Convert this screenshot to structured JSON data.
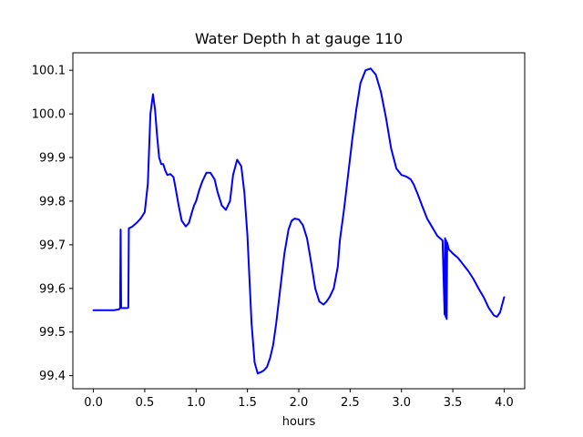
{
  "chart_data": {
    "type": "line",
    "title": "Water Depth h at gauge 110",
    "xlabel": "hours",
    "ylabel": "",
    "xlim": [
      -0.2,
      4.2
    ],
    "ylim": [
      99.37,
      100.14
    ],
    "xticks": [
      {
        "value": 0.0,
        "label": "0.0"
      },
      {
        "value": 0.5,
        "label": "0.5"
      },
      {
        "value": 1.0,
        "label": "1.0"
      },
      {
        "value": 1.5,
        "label": "1.5"
      },
      {
        "value": 2.0,
        "label": "2.0"
      },
      {
        "value": 2.5,
        "label": "2.5"
      },
      {
        "value": 3.0,
        "label": "3.0"
      },
      {
        "value": 3.5,
        "label": "3.5"
      },
      {
        "value": 4.0,
        "label": "4.0"
      }
    ],
    "yticks": [
      {
        "value": 99.4,
        "label": "99.4"
      },
      {
        "value": 99.5,
        "label": "99.5"
      },
      {
        "value": 99.6,
        "label": "99.6"
      },
      {
        "value": 99.7,
        "label": "99.7"
      },
      {
        "value": 99.8,
        "label": "99.8"
      },
      {
        "value": 99.9,
        "label": "99.9"
      },
      {
        "value": 100.0,
        "label": "100.0"
      },
      {
        "value": 100.1,
        "label": "100.1"
      }
    ],
    "grid": false,
    "series": [
      {
        "color": "#0000ff",
        "x": [
          0.0,
          0.1,
          0.2,
          0.25,
          0.26,
          0.265,
          0.27,
          0.28,
          0.3,
          0.33,
          0.34,
          0.345,
          0.35,
          0.38,
          0.42,
          0.46,
          0.5,
          0.53,
          0.555,
          0.58,
          0.6,
          0.62,
          0.64,
          0.66,
          0.68,
          0.7,
          0.72,
          0.75,
          0.78,
          0.8,
          0.83,
          0.86,
          0.9,
          0.93,
          0.96,
          0.98,
          1.0,
          1.03,
          1.06,
          1.1,
          1.14,
          1.18,
          1.21,
          1.25,
          1.29,
          1.33,
          1.36,
          1.4,
          1.44,
          1.47,
          1.5,
          1.52,
          1.54,
          1.57,
          1.6,
          1.63,
          1.66,
          1.69,
          1.72,
          1.75,
          1.78,
          1.82,
          1.86,
          1.9,
          1.93,
          1.96,
          2.0,
          2.04,
          2.08,
          2.12,
          2.16,
          2.2,
          2.24,
          2.27,
          2.3,
          2.34,
          2.38,
          2.4,
          2.44,
          2.48,
          2.52,
          2.56,
          2.6,
          2.65,
          2.7,
          2.75,
          2.8,
          2.85,
          2.9,
          2.95,
          3.0,
          3.05,
          3.09,
          3.12,
          3.16,
          3.2,
          3.25,
          3.3,
          3.35,
          3.4,
          3.42,
          3.425,
          3.43,
          3.435,
          3.44,
          3.445,
          3.45,
          3.455,
          3.46,
          3.5,
          3.55,
          3.6,
          3.65,
          3.7,
          3.75,
          3.8,
          3.85,
          3.9,
          3.93,
          3.96,
          4.0
        ],
        "y": [
          99.55,
          99.55,
          99.55,
          99.552,
          99.555,
          99.735,
          99.555,
          99.555,
          99.555,
          99.555,
          99.556,
          99.738,
          99.738,
          99.742,
          99.75,
          99.76,
          99.775,
          99.84,
          100.0,
          100.045,
          100.01,
          99.95,
          99.9,
          99.885,
          99.885,
          99.87,
          99.86,
          99.862,
          99.855,
          99.83,
          99.79,
          99.755,
          99.742,
          99.75,
          99.775,
          99.79,
          99.8,
          99.825,
          99.845,
          99.865,
          99.865,
          99.85,
          99.82,
          99.79,
          99.78,
          99.8,
          99.86,
          99.895,
          99.88,
          99.82,
          99.72,
          99.62,
          99.52,
          99.43,
          99.405,
          99.408,
          99.412,
          99.42,
          99.44,
          99.47,
          99.52,
          99.6,
          99.68,
          99.735,
          99.755,
          99.76,
          99.758,
          99.745,
          99.715,
          99.66,
          99.6,
          99.57,
          99.563,
          99.57,
          99.58,
          99.6,
          99.65,
          99.71,
          99.78,
          99.86,
          99.94,
          100.01,
          100.07,
          100.1,
          100.104,
          100.09,
          100.05,
          99.99,
          99.92,
          99.875,
          99.86,
          99.856,
          99.85,
          99.838,
          99.815,
          99.79,
          99.76,
          99.74,
          99.72,
          99.71,
          99.54,
          99.715,
          99.535,
          99.71,
          99.53,
          99.705,
          99.7,
          99.695,
          99.69,
          99.68,
          99.67,
          99.655,
          99.64,
          99.622,
          99.6,
          99.58,
          99.555,
          99.538,
          99.535,
          99.545,
          99.58
        ]
      }
    ]
  }
}
